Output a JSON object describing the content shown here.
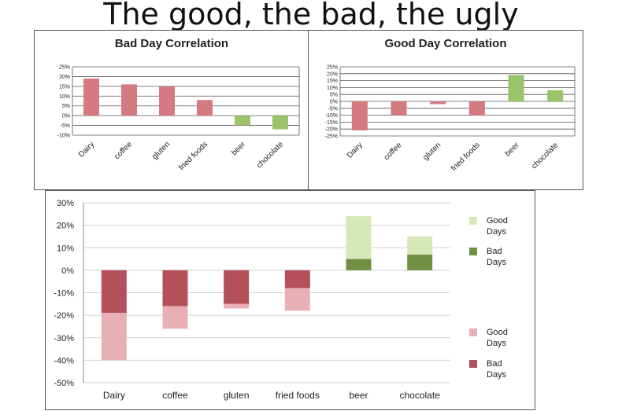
{
  "page": {
    "title": "The good, the bad, the ugly"
  },
  "colors": {
    "bad_light": "#d47a80",
    "bad_dark": "#b4505a",
    "bad_pale": "#e8b0b6",
    "good_light": "#9ac46a",
    "good_pale": "#d6e8b8",
    "good_dark": "#6f8f42"
  },
  "chart_data": [
    {
      "type": "bar",
      "title": "Bad Day Correlation",
      "categories": [
        "Dairy",
        "coffee",
        "gluten",
        "fried foods",
        "beer",
        "chocolate"
      ],
      "values": [
        19,
        16,
        15,
        8,
        -5,
        -7
      ],
      "ylim": [
        -10,
        25
      ],
      "yticks": [
        "25%",
        "20%",
        "15%",
        "10%",
        "5%",
        "0%",
        "-5%",
        "-10%"
      ],
      "grid": true
    },
    {
      "type": "bar",
      "title": "Good Day Correlation",
      "categories": [
        "Dairy",
        "coffee",
        "gluten",
        "fried foods",
        "beer",
        "chocolate"
      ],
      "values": [
        -21,
        -10,
        -2,
        -10,
        19,
        8
      ],
      "ylim": [
        -25,
        25
      ],
      "yticks": [
        "25%",
        "20%",
        "15%",
        "10%",
        "5%",
        "0%",
        "-5%",
        "-10%",
        "-15%",
        "-20%",
        "-25%"
      ],
      "grid": true
    },
    {
      "type": "bar",
      "stacked": true,
      "categories": [
        "Dairy",
        "coffee",
        "gluten",
        "fried foods",
        "beer",
        "chocolate"
      ],
      "series": [
        {
          "name": "Bad Days",
          "values": [
            -19,
            -16,
            -15,
            -8,
            5,
            7
          ]
        },
        {
          "name": "Good Days",
          "values": [
            -21,
            -10,
            -2,
            -10,
            19,
            8
          ]
        }
      ],
      "ylim": [
        -50,
        30
      ],
      "yticks": [
        "30%",
        "20%",
        "10%",
        "0%",
        "-10%",
        "-20%",
        "-30%",
        "-40%",
        "-50%"
      ],
      "grid": true,
      "legend_top": [
        "Good Days",
        "Bad Days"
      ],
      "legend_bottom": [
        "Good Days",
        "Bad Days"
      ],
      "legend_placement": "right"
    }
  ]
}
